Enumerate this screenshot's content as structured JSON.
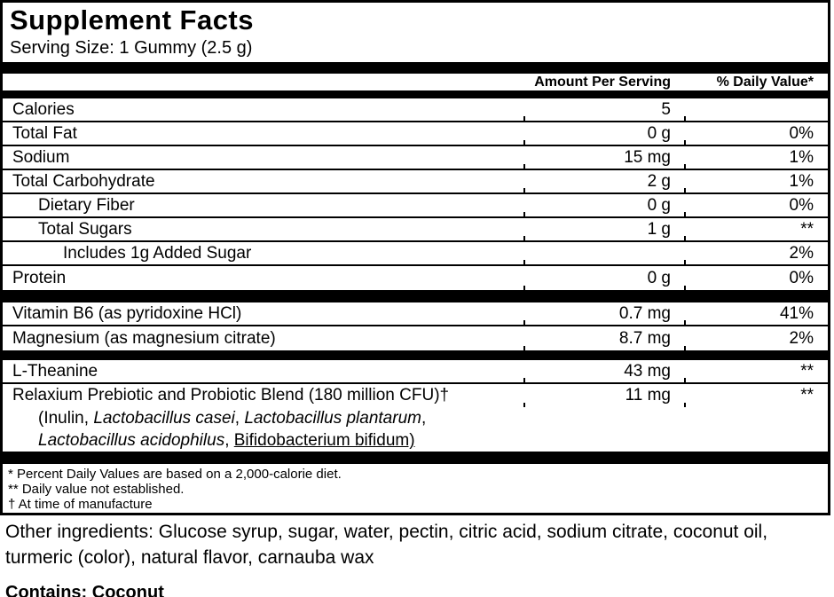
{
  "title": "Supplement Facts",
  "serving_size": "Serving Size: 1 Gummy (2.5 g)",
  "columns": {
    "amount": "Amount Per Serving",
    "dv": "% Daily Value*"
  },
  "rows": [
    {
      "label": "Calories",
      "amount": "5",
      "dv": ""
    },
    {
      "label": "Total Fat",
      "amount": "0 g",
      "dv": "0%"
    },
    {
      "label": "Sodium",
      "amount": "15 mg",
      "dv": "1%"
    },
    {
      "label": "Total Carbohydrate",
      "amount": "2 g",
      "dv": "1%"
    },
    {
      "label": "Dietary Fiber",
      "amount": "0 g",
      "dv": "0%"
    },
    {
      "label": "Total Sugars",
      "amount": "1 g",
      "dv": "**"
    },
    {
      "label": "Includes 1g Added Sugar",
      "amount": "",
      "dv": "2%"
    },
    {
      "label": "Protein",
      "amount": "0 g",
      "dv": "0%"
    },
    {
      "label": "Vitamin B6 (as pyridoxine HCl)",
      "amount": "0.7 mg",
      "dv": "41%"
    },
    {
      "label": "Magnesium (as magnesium citrate)",
      "amount": "8.7 mg",
      "dv": "2%"
    },
    {
      "label": "L-Theanine",
      "amount": "43 mg",
      "dv": "**"
    }
  ],
  "blend": {
    "title": "Relaxium Prebiotic and Probiotic Blend (180 million CFU)†",
    "amount": "11 mg",
    "dv": "**",
    "line2": [
      {
        "t": "(Inulin, ",
        "s": ""
      },
      {
        "t": "Lactobacillus casei",
        "s": "i"
      },
      {
        "t": ", ",
        "s": ""
      },
      {
        "t": "Lactobacillus plantarum",
        "s": "i"
      },
      {
        "t": ",",
        "s": ""
      }
    ],
    "line3": [
      {
        "t": "Lactobacillus acidophilus",
        "s": "i"
      },
      {
        "t": ", ",
        "s": ""
      },
      {
        "t": "Bifidobacterium bifidum)",
        "s": "u"
      }
    ]
  },
  "footnotes": [
    "* Percent Daily Values are based on a 2,000-calorie diet.",
    "** Daily value not established.",
    "† At time of manufacture"
  ],
  "other_ingredients": [
    "Other ingredients: Glucose syrup, sugar, water, pectin, citric acid, sodium citrate, coconut oil,",
    "turmeric (color), natural flavor, carnauba wax"
  ],
  "contains": "Contains: Coconut"
}
